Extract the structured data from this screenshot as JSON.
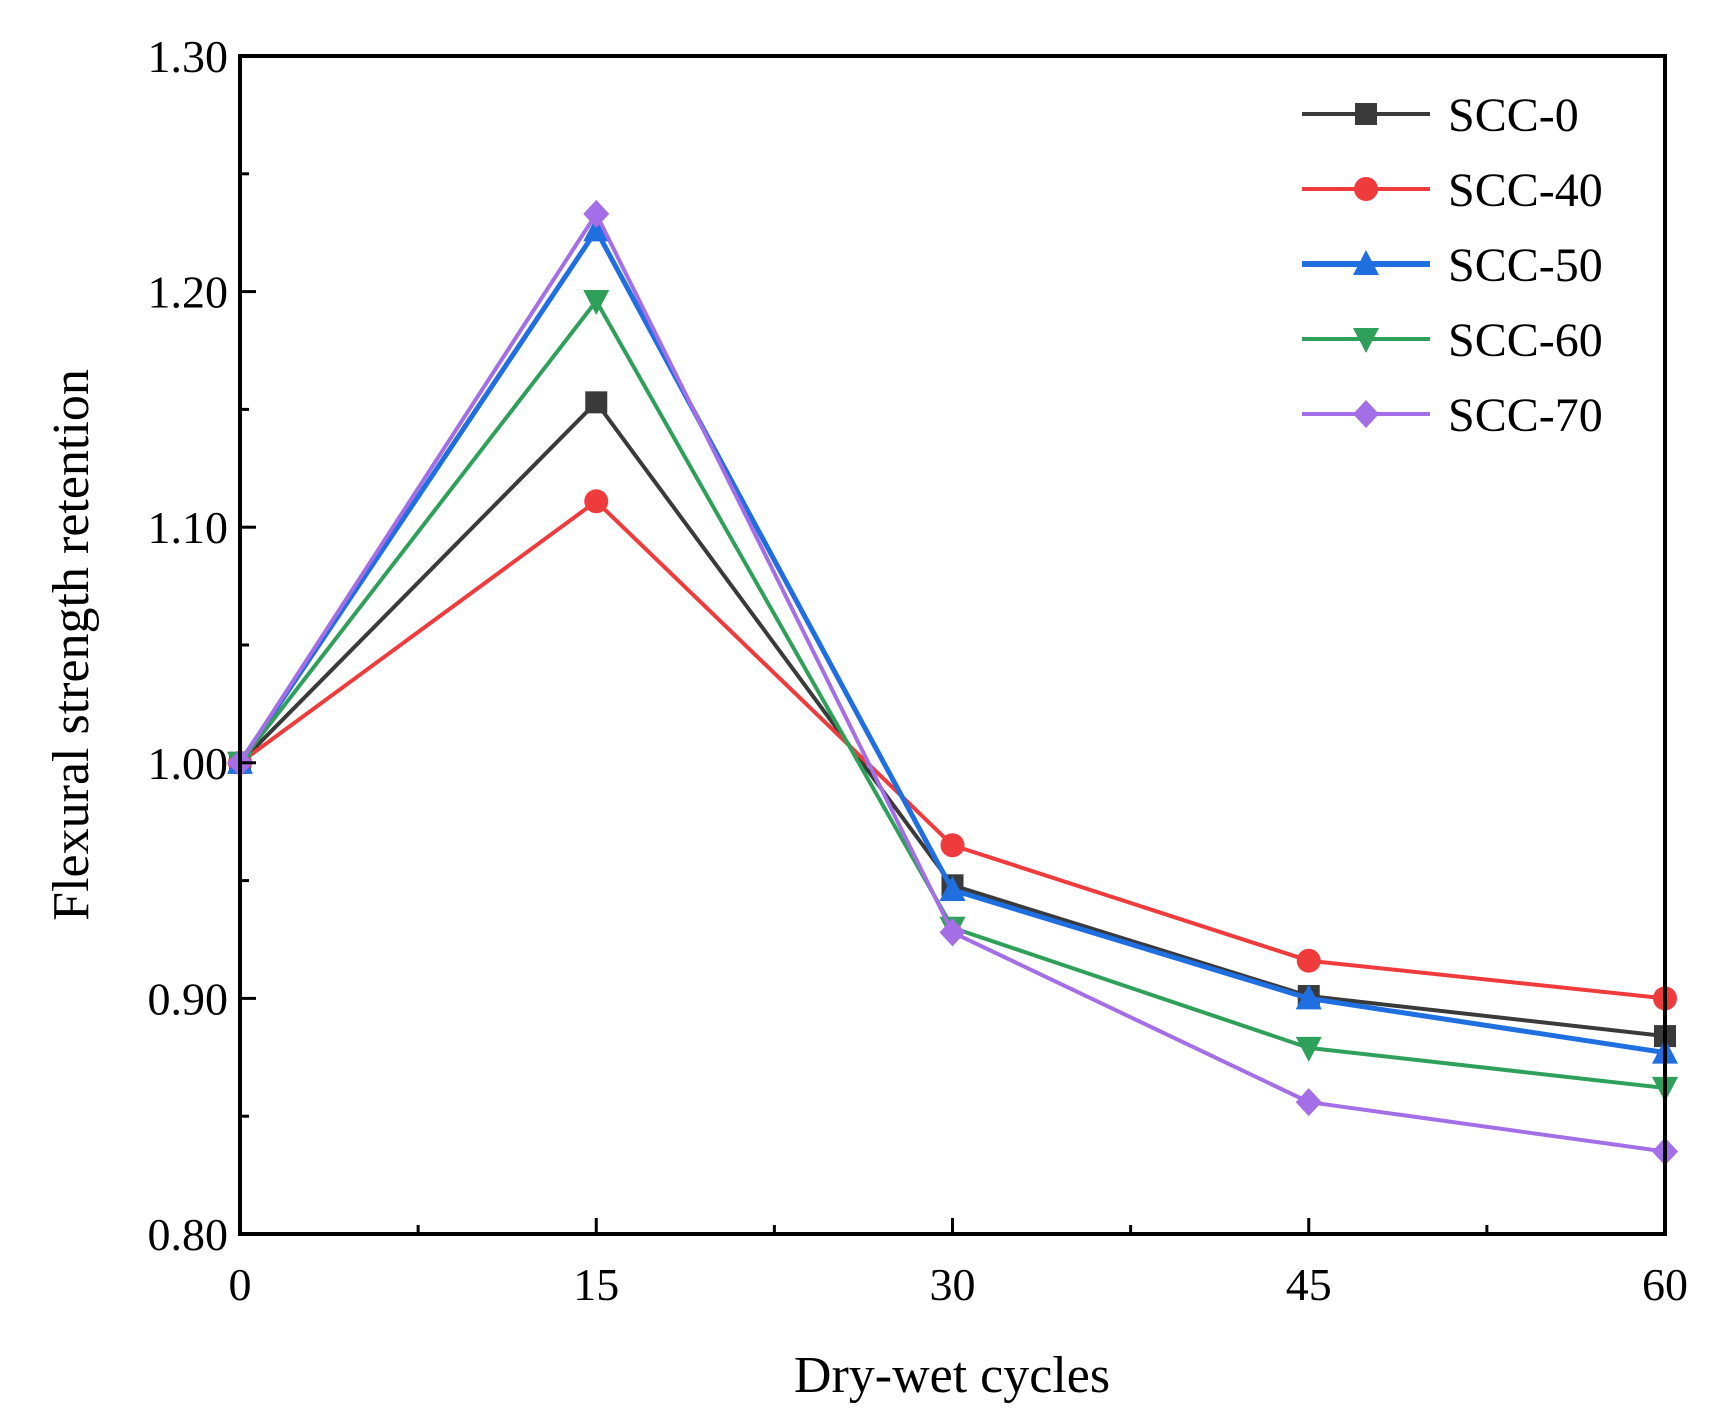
{
  "chart_data": {
    "type": "line",
    "title": "",
    "xlabel": "Dry-wet cycles",
    "ylabel": "Flexural strength retention",
    "x": [
      0,
      15,
      30,
      45,
      60
    ],
    "x_tick_labels": [
      "0",
      "15",
      "30",
      "45",
      "60"
    ],
    "xlim": [
      0,
      60
    ],
    "ylim": [
      0.8,
      1.3
    ],
    "y_ticks": [
      0.8,
      0.9,
      1.0,
      1.1,
      1.2,
      1.3
    ],
    "y_tick_labels": [
      "0.80",
      "0.90",
      "1.00",
      "1.10",
      "1.20",
      "1.30"
    ],
    "legend_position": "top-right",
    "grid": false,
    "series": [
      {
        "name": "SCC-0",
        "color": "#3a3a3a",
        "marker": "square",
        "values": [
          1.0,
          1.153,
          0.948,
          0.901,
          0.884
        ]
      },
      {
        "name": "SCC-40",
        "color": "#ef3b3b",
        "marker": "circle",
        "values": [
          1.0,
          1.111,
          0.965,
          0.916,
          0.9
        ]
      },
      {
        "name": "SCC-50",
        "color": "#1f6fe0",
        "marker": "triangle-up",
        "values": [
          1.0,
          1.226,
          0.946,
          0.9,
          0.877
        ]
      },
      {
        "name": "SCC-60",
        "color": "#2ea05a",
        "marker": "triangle-down",
        "values": [
          1.0,
          1.196,
          0.93,
          0.879,
          0.862
        ]
      },
      {
        "name": "SCC-70",
        "color": "#a36ee6",
        "marker": "diamond",
        "values": [
          1.0,
          1.233,
          0.928,
          0.856,
          0.835
        ]
      }
    ]
  }
}
